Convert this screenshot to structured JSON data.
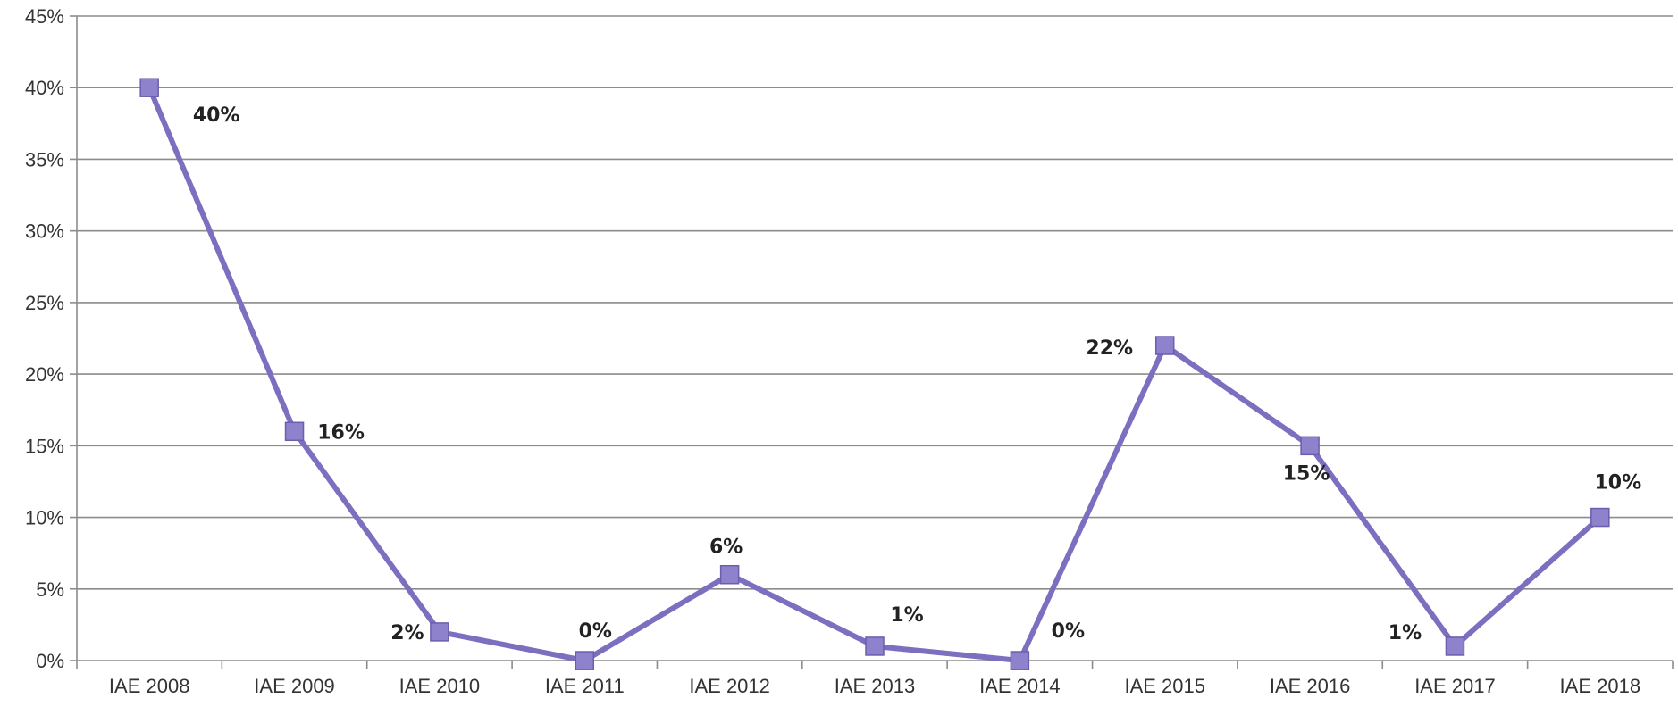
{
  "chart_data": {
    "type": "line",
    "title": "",
    "xlabel": "",
    "ylabel": "",
    "categories": [
      "IAE 2008",
      "IAE 2009",
      "IAE 2010",
      "IAE 2011",
      "IAE 2012",
      "IAE 2013",
      "IAE 2014",
      "IAE 2015",
      "IAE 2016",
      "IAE 2017",
      "IAE 2018"
    ],
    "series": [
      {
        "values": [
          40,
          16,
          2,
          0,
          6,
          1,
          0,
          22,
          15,
          1,
          10
        ],
        "data_labels": [
          "40%",
          "16%",
          "2%",
          "0%",
          "6%",
          "1%",
          "0%",
          "22%",
          "15%",
          "1%",
          "10%"
        ],
        "color": "#7b6fc0",
        "marker_color": "#8e82cc",
        "marker_stroke": "#6a5fae"
      }
    ],
    "ylim": [
      0,
      45
    ],
    "y_ticks": [
      0,
      5,
      10,
      15,
      20,
      25,
      30,
      35,
      40,
      45
    ],
    "y_tick_labels": [
      "0%",
      "5%",
      "10%",
      "15%",
      "20%",
      "25%",
      "30%",
      "35%",
      "40%",
      "45%"
    ],
    "grid": true,
    "legend": "none",
    "colors": {
      "gridline": "#8c8c8c",
      "text": "#333333"
    }
  }
}
